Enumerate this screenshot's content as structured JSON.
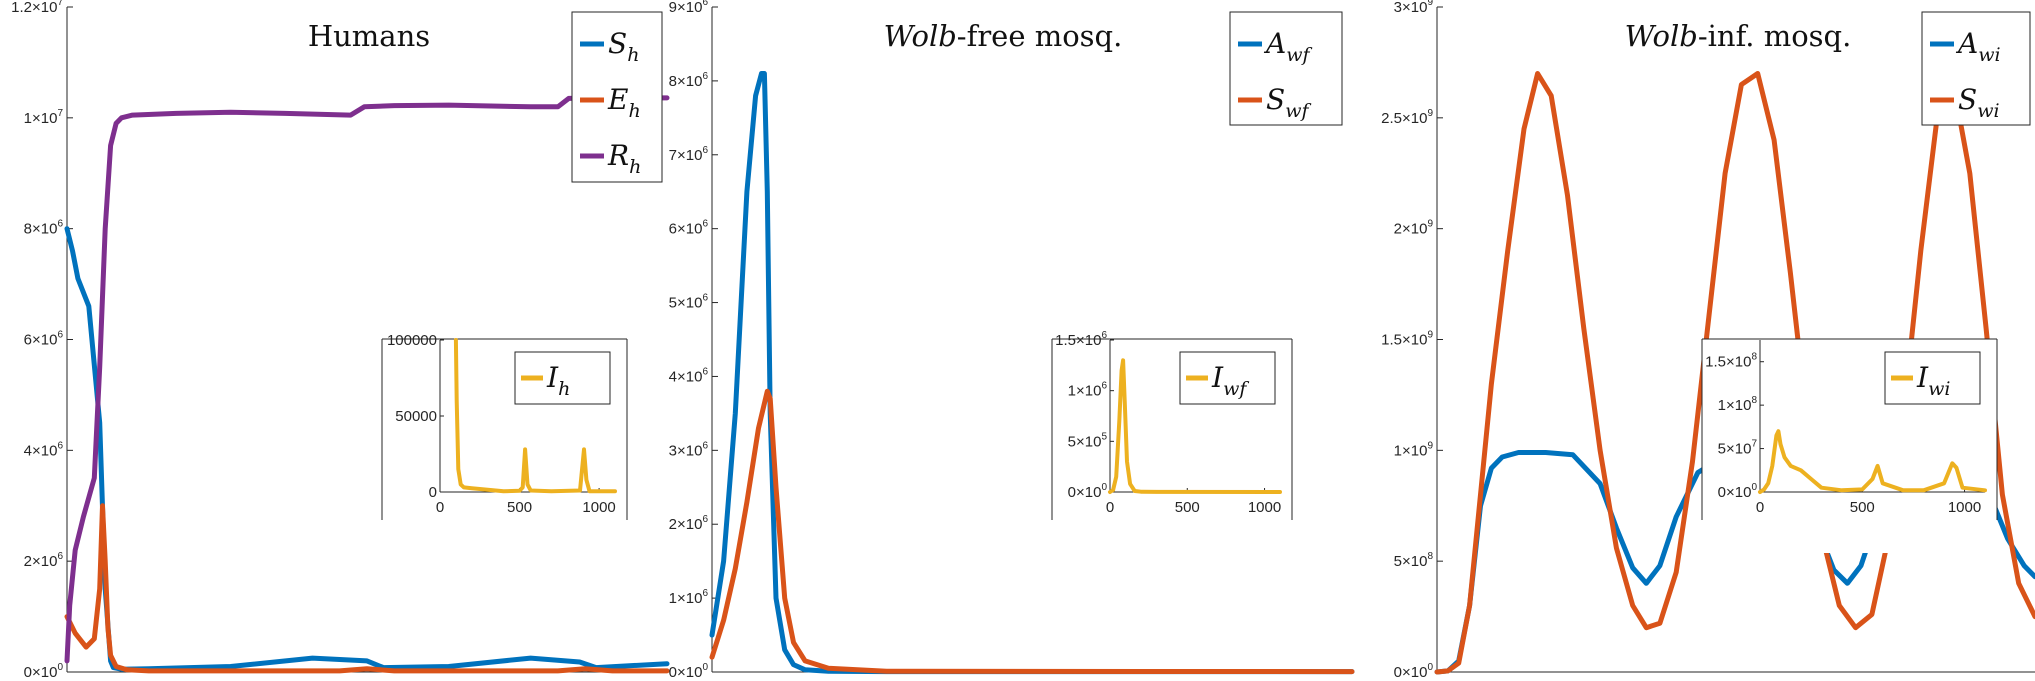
{
  "chart_data": [
    {
      "type": "line",
      "title": "Humans",
      "ylim": [
        0,
        12000000
      ],
      "yticks": [
        0,
        2000000,
        4000000,
        6000000,
        8000000,
        10000000,
        12000000
      ],
      "ytick_labels": [
        {
          "m": "0",
          "e": "0"
        },
        {
          "m": "2",
          "e": "6"
        },
        {
          "m": "4",
          "e": "6"
        },
        {
          "m": "6",
          "e": "6"
        },
        {
          "m": "8",
          "e": "6"
        },
        {
          "m": "1",
          "e": "7"
        },
        {
          "m": "1.2",
          "e": "7"
        }
      ],
      "xlim": [
        0,
        1100
      ],
      "legend_location": "top-right",
      "series": [
        {
          "name": "S",
          "sub": "h",
          "color": "#0072BD",
          "x": [
            0,
            10,
            20,
            40,
            60,
            70,
            80,
            85,
            100,
            150,
            300,
            450,
            550,
            580,
            700,
            850,
            940,
            970,
            1100
          ],
          "y": [
            8000000,
            7600000,
            7100000,
            6600000,
            4500000,
            1500000,
            200000,
            80000,
            50000,
            60000,
            100000,
            250000,
            200000,
            80000,
            100000,
            250000,
            180000,
            80000,
            150000
          ]
        },
        {
          "name": "E",
          "sub": "h",
          "color": "#D95319",
          "x": [
            0,
            15,
            35,
            50,
            60,
            65,
            70,
            75,
            80,
            90,
            110,
            150,
            300,
            500,
            550,
            600,
            900,
            950,
            1000,
            1100
          ],
          "y": [
            1000000,
            700000,
            450000,
            600000,
            1500000,
            3000000,
            2000000,
            800000,
            300000,
            100000,
            40000,
            20000,
            20000,
            20000,
            60000,
            20000,
            20000,
            60000,
            20000,
            20000
          ]
        },
        {
          "name": "R",
          "sub": "h",
          "color": "#7E2F8E",
          "x": [
            0,
            5,
            15,
            30,
            50,
            60,
            70,
            80,
            90,
            100,
            120,
            200,
            300,
            400,
            520,
            545,
            600,
            700,
            850,
            900,
            920,
            1000,
            1100
          ],
          "y": [
            200000,
            1200000,
            2200000,
            2800000,
            3500000,
            5500000,
            8000000,
            9500000,
            9900000,
            10000000,
            10050000,
            10080000,
            10100000,
            10080000,
            10050000,
            10200000,
            10220000,
            10230000,
            10200000,
            10200000,
            10350000,
            10360000,
            10360000
          ]
        }
      ],
      "inset": {
        "ylim": [
          0,
          100000
        ],
        "yticks": [
          0,
          50000,
          100000
        ],
        "ytick_labels": [
          "0",
          "50000",
          "100000"
        ],
        "xlim": [
          0,
          1100
        ],
        "xticks": [
          0,
          500,
          1000
        ],
        "xtick_labels": [
          "0",
          "500",
          "1000"
        ],
        "series": {
          "name": "I",
          "sub": "h",
          "color": "#EDB120",
          "x": [
            100,
            105,
            115,
            130,
            150,
            200,
            250,
            400,
            500,
            520,
            535,
            550,
            570,
            700,
            880,
            905,
            920,
            940,
            1100
          ],
          "y": [
            100000,
            60000,
            15000,
            5000,
            3000,
            2500,
            2000,
            500,
            800,
            3000,
            28000,
            5000,
            1000,
            500,
            1000,
            28000,
            8000,
            500,
            500
          ]
        }
      }
    },
    {
      "type": "line",
      "title": "-free mosq.",
      "title_italic": "Wolb",
      "ylim": [
        0,
        9000000
      ],
      "yticks": [
        0,
        1000000,
        2000000,
        3000000,
        4000000,
        5000000,
        6000000,
        7000000,
        8000000,
        9000000
      ],
      "ytick_labels": [
        {
          "m": "0",
          "e": "0"
        },
        {
          "m": "1",
          "e": "6"
        },
        {
          "m": "2",
          "e": "6"
        },
        {
          "m": "3",
          "e": "6"
        },
        {
          "m": "4",
          "e": "6"
        },
        {
          "m": "5",
          "e": "6"
        },
        {
          "m": "6",
          "e": "6"
        },
        {
          "m": "7",
          "e": "6"
        },
        {
          "m": "8",
          "e": "6"
        },
        {
          "m": "9",
          "e": "6"
        }
      ],
      "xlim": [
        0,
        1100
      ],
      "legend_location": "top-right",
      "series": [
        {
          "name": "A",
          "sub": "wf",
          "color": "#0072BD",
          "x": [
            0,
            20,
            40,
            60,
            75,
            85,
            90,
            95,
            100,
            110,
            125,
            140,
            160,
            200,
            300,
            1100
          ],
          "y": [
            500000,
            1500000,
            3500000,
            6500000,
            7800000,
            8100000,
            8100000,
            6500000,
            3500000,
            1000000,
            300000,
            100000,
            30000,
            10000,
            5000,
            5000
          ]
        },
        {
          "name": "S",
          "sub": "wf",
          "color": "#D95319",
          "x": [
            0,
            20,
            40,
            60,
            80,
            95,
            100,
            110,
            125,
            140,
            160,
            200,
            300,
            1100
          ],
          "y": [
            200000,
            700000,
            1400000,
            2300000,
            3300000,
            3800000,
            3700000,
            2500000,
            1000000,
            400000,
            150000,
            50000,
            10000,
            5000
          ]
        }
      ],
      "inset": {
        "ylim": [
          0,
          1500000
        ],
        "yticks": [
          0,
          500000,
          1000000,
          1500000
        ],
        "ytick_labels": [
          {
            "m": "0",
            "e": "0"
          },
          {
            "m": "5",
            "e": "5"
          },
          {
            "m": "1",
            "e": "6"
          },
          {
            "m": "1.5",
            "e": "6"
          }
        ],
        "xlim": [
          0,
          1100
        ],
        "xticks": [
          0,
          500,
          1000
        ],
        "xtick_labels": [
          "0",
          "500",
          "1000"
        ],
        "series": {
          "name": "I",
          "sub": "wf",
          "color": "#EDB120",
          "x": [
            0,
            20,
            40,
            60,
            75,
            85,
            95,
            110,
            130,
            160,
            200,
            300,
            1100
          ],
          "y": [
            0,
            20000,
            150000,
            700000,
            1200000,
            1300000,
            900000,
            300000,
            80000,
            10000,
            3000,
            1000,
            0
          ]
        }
      }
    },
    {
      "type": "line",
      "title": "-inf. mosq.",
      "title_italic": "Wolb",
      "ylim": [
        0,
        3000000000
      ],
      "yticks": [
        0,
        500000000,
        1000000000,
        1500000000,
        2000000000,
        2500000000,
        3000000000
      ],
      "ytick_labels": [
        {
          "m": "0",
          "e": "0"
        },
        {
          "m": "5",
          "e": "8"
        },
        {
          "m": "1",
          "e": "9"
        },
        {
          "m": "1.5",
          "e": "9"
        },
        {
          "m": "2",
          "e": "9"
        },
        {
          "m": "2.5",
          "e": "9"
        },
        {
          "m": "3",
          "e": "9"
        }
      ],
      "xlim": [
        0,
        1100
      ],
      "legend_location": "top-right",
      "series": [
        {
          "name": "A",
          "sub": "wi",
          "color": "#0072BD",
          "x": [
            0,
            20,
            40,
            60,
            80,
            100,
            120,
            150,
            200,
            250,
            300,
            330,
            360,
            385,
            410,
            440,
            480,
            520,
            560,
            600,
            660,
            700,
            730,
            755,
            780,
            810,
            850,
            900,
            950,
            1000,
            1050,
            1080,
            1100
          ],
          "y": [
            0,
            5000000,
            50000000,
            300000000,
            750000000,
            920000000,
            970000000,
            990000000,
            990000000,
            980000000,
            850000000,
            650000000,
            470000000,
            400000000,
            480000000,
            700000000,
            900000000,
            960000000,
            980000000,
            980000000,
            900000000,
            650000000,
            460000000,
            400000000,
            480000000,
            700000000,
            920000000,
            985000000,
            990000000,
            900000000,
            600000000,
            480000000,
            430000000
          ]
        },
        {
          "name": "S",
          "sub": "wi",
          "color": "#D95319",
          "x": [
            0,
            20,
            40,
            60,
            80,
            100,
            130,
            160,
            185,
            210,
            240,
            270,
            300,
            330,
            360,
            385,
            410,
            440,
            470,
            500,
            530,
            560,
            590,
            620,
            650,
            680,
            710,
            740,
            770,
            800,
            830,
            860,
            890,
            920,
            950,
            980,
            1010,
            1040,
            1070,
            1100
          ],
          "y": [
            0,
            5000000,
            40000000,
            300000000,
            800000000,
            1300000000,
            1900000000,
            2450000000,
            2700000000,
            2600000000,
            2150000000,
            1550000000,
            1000000000,
            560000000,
            300000000,
            200000000,
            220000000,
            450000000,
            950000000,
            1600000000,
            2250000000,
            2650000000,
            2700000000,
            2400000000,
            1800000000,
            1150000000,
            600000000,
            300000000,
            200000000,
            260000000,
            600000000,
            1200000000,
            1900000000,
            2500000000,
            2650000000,
            2250000000,
            1550000000,
            800000000,
            400000000,
            250000000
          ]
        }
      ],
      "inset": {
        "ylim": [
          0,
          175000000
        ],
        "yticks": [
          0,
          50000000,
          100000000,
          150000000
        ],
        "ytick_labels": [
          {
            "m": "0",
            "e": "0"
          },
          {
            "m": "5",
            "e": "7"
          },
          {
            "m": "1",
            "e": "8"
          },
          {
            "m": "1.5",
            "e": "8"
          }
        ],
        "xlim": [
          0,
          1100
        ],
        "xticks": [
          0,
          500,
          1000
        ],
        "xtick_labels": [
          "0",
          "500",
          "1000"
        ],
        "series": {
          "name": "I",
          "sub": "wi",
          "color": "#EDB120",
          "x": [
            0,
            20,
            40,
            60,
            80,
            90,
            100,
            120,
            150,
            200,
            250,
            300,
            400,
            500,
            550,
            575,
            600,
            700,
            800,
            900,
            940,
            960,
            990,
            1100
          ],
          "y": [
            0,
            3000000,
            10000000,
            30000000,
            65000000,
            70000000,
            55000000,
            40000000,
            30000000,
            25000000,
            15000000,
            5000000,
            2000000,
            3000000,
            15000000,
            30000000,
            10000000,
            2000000,
            2000000,
            10000000,
            33000000,
            28000000,
            5000000,
            2000000
          ]
        }
      }
    }
  ]
}
